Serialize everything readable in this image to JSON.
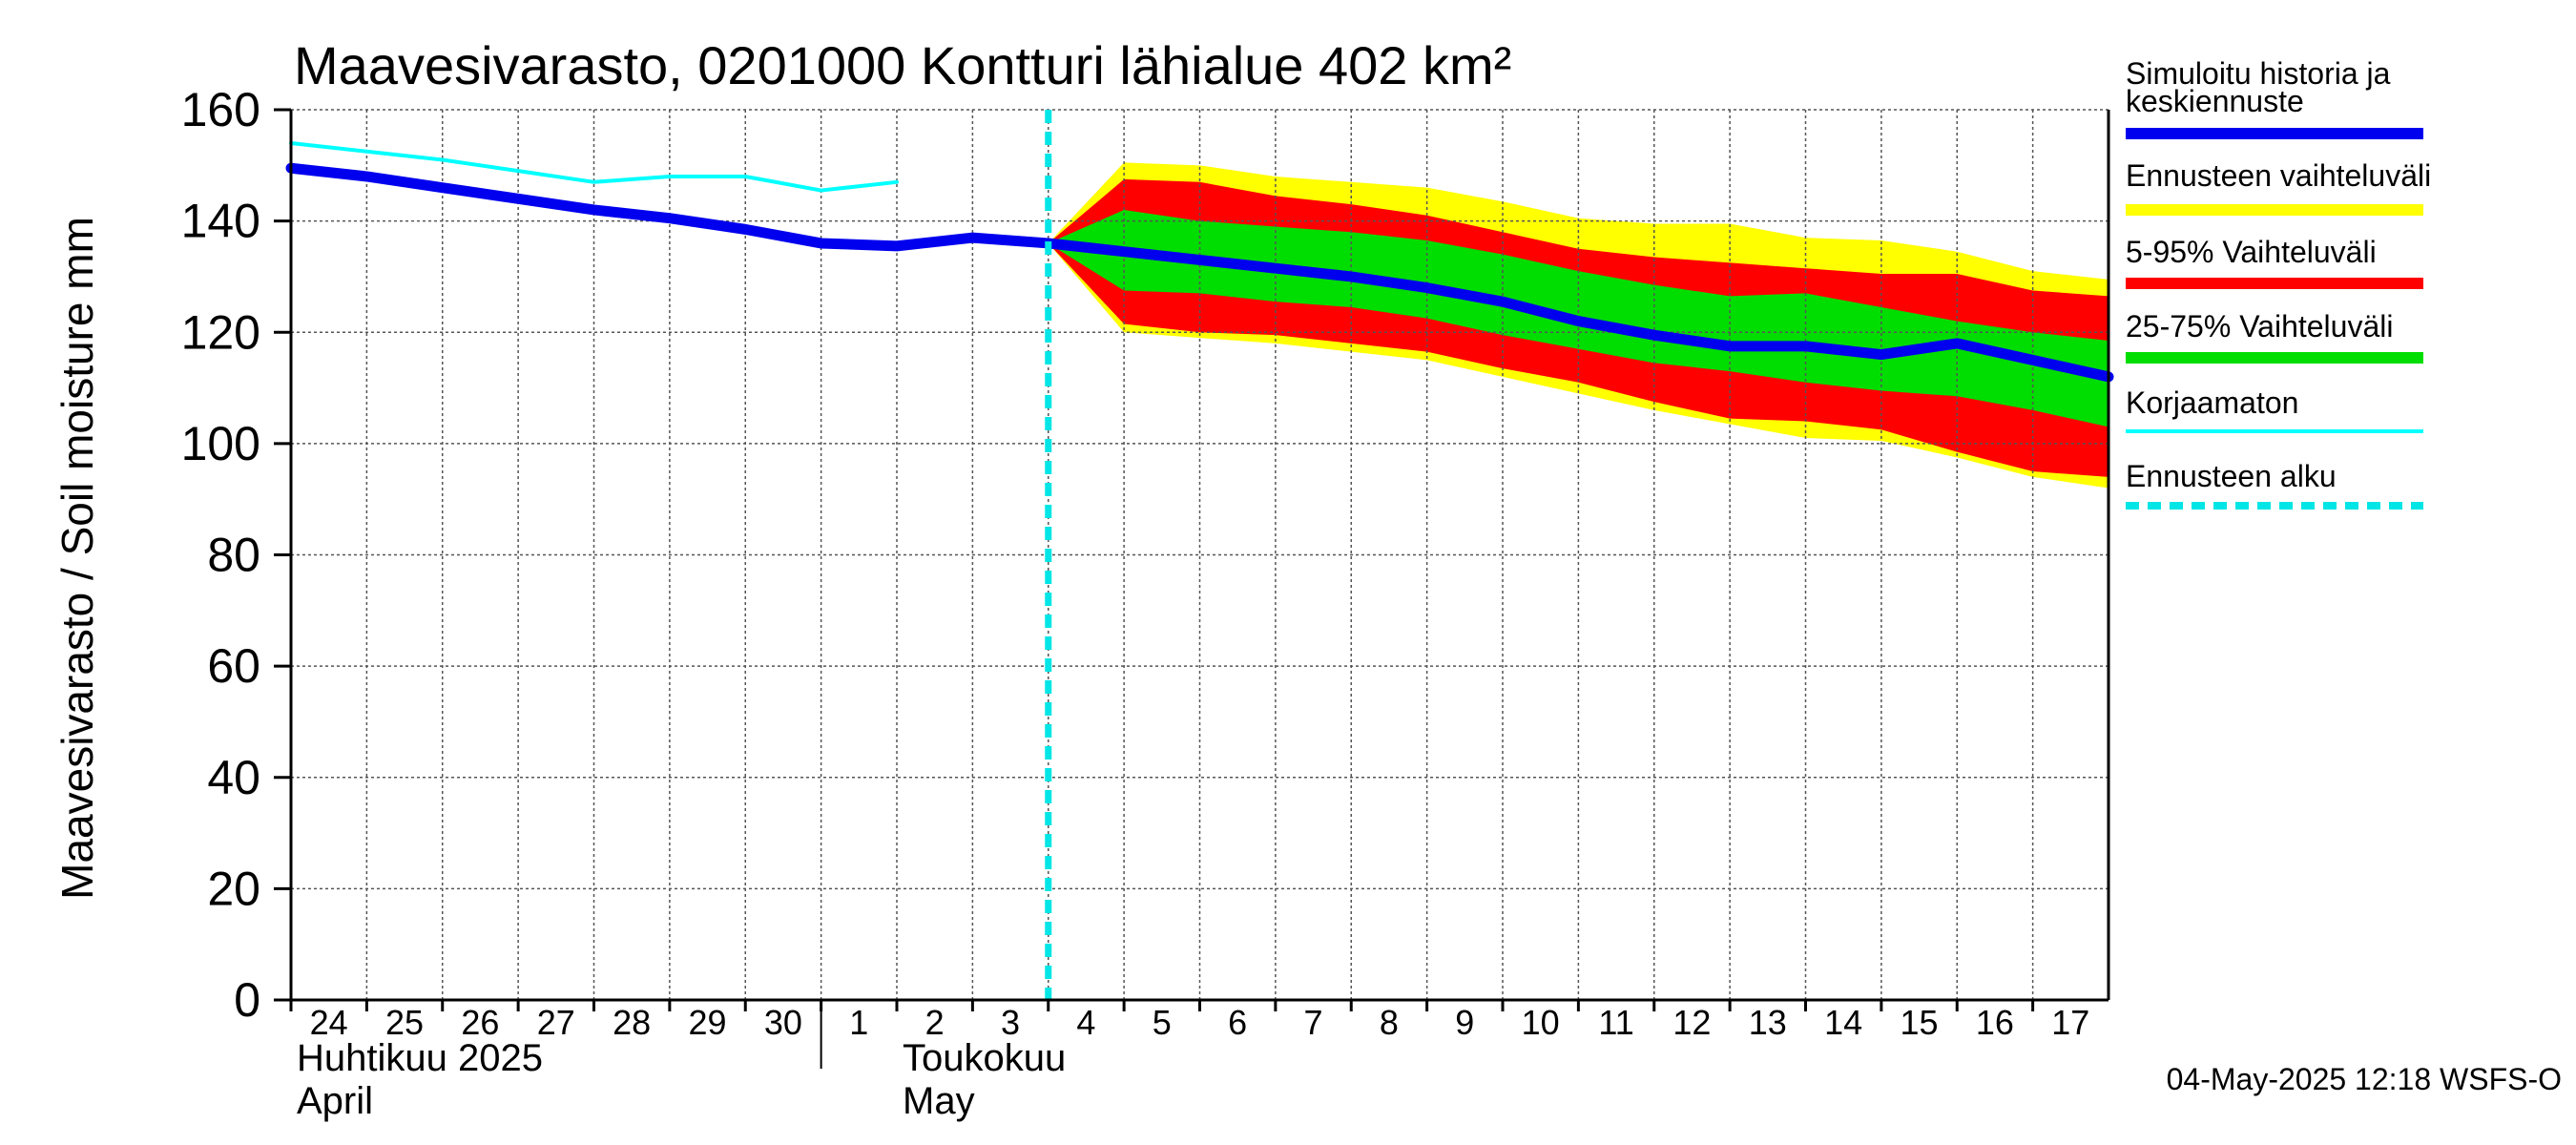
{
  "chart_data": {
    "type": "area",
    "title": "Maavesivarasto, 0201000 Kontturi lähialue 402 km²",
    "ylabel": "Maavesivarasto / Soil moisture   mm",
    "ylim": [
      0,
      160
    ],
    "yticks": [
      0,
      20,
      40,
      60,
      80,
      100,
      120,
      140,
      160
    ],
    "xlim": [
      0,
      24
    ],
    "x_ticks": [
      {
        "x": 0,
        "label": "24"
      },
      {
        "x": 1,
        "label": "25"
      },
      {
        "x": 2,
        "label": "26"
      },
      {
        "x": 3,
        "label": "27"
      },
      {
        "x": 4,
        "label": "28"
      },
      {
        "x": 5,
        "label": "29"
      },
      {
        "x": 6,
        "label": "30"
      },
      {
        "x": 7,
        "label": "1"
      },
      {
        "x": 8,
        "label": "2"
      },
      {
        "x": 9,
        "label": "3"
      },
      {
        "x": 10,
        "label": "4"
      },
      {
        "x": 11,
        "label": "5"
      },
      {
        "x": 12,
        "label": "6"
      },
      {
        "x": 13,
        "label": "7"
      },
      {
        "x": 14,
        "label": "8"
      },
      {
        "x": 15,
        "label": "9"
      },
      {
        "x": 16,
        "label": "10"
      },
      {
        "x": 17,
        "label": "11"
      },
      {
        "x": 18,
        "label": "12"
      },
      {
        "x": 19,
        "label": "13"
      },
      {
        "x": 20,
        "label": "14"
      },
      {
        "x": 21,
        "label": "15"
      },
      {
        "x": 22,
        "label": "16"
      },
      {
        "x": 23,
        "label": "17"
      }
    ],
    "month_labels": [
      {
        "x": 0,
        "line1": "Huhtikuu  2025",
        "line2": "April"
      },
      {
        "x": 8,
        "line1": "Toukokuu",
        "line2": "May"
      }
    ],
    "month_separator_x": 7,
    "forecast_start_x": 10,
    "grid": true,
    "series": [
      {
        "name": "Ennusteen vaihteluväli",
        "kind": "band",
        "color": "#ffff00",
        "x": [
          10,
          11,
          12,
          13,
          14,
          15,
          16,
          17,
          18,
          19,
          20,
          21,
          22,
          23,
          24
        ],
        "upper": [
          136,
          150.5,
          150,
          148,
          147,
          146,
          143.5,
          140.5,
          139.5,
          139.5,
          137,
          136.5,
          134.5,
          131,
          129.5
        ],
        "lower": [
          136,
          120,
          119,
          118,
          116.5,
          115,
          112,
          109,
          106,
          103.5,
          101,
          100.5,
          97.5,
          94,
          92
        ]
      },
      {
        "name": "5-95% Vaihteluväli",
        "kind": "band",
        "color": "#ff0000",
        "x": [
          10,
          11,
          12,
          13,
          14,
          15,
          16,
          17,
          18,
          19,
          20,
          21,
          22,
          23,
          24
        ],
        "upper": [
          136,
          147.5,
          147,
          144.5,
          143,
          141,
          138,
          135,
          133.5,
          132.5,
          131.5,
          130.5,
          130.5,
          127.5,
          126.5
        ],
        "lower": [
          136,
          121.5,
          120,
          119.5,
          118,
          116.5,
          113.5,
          111,
          107.5,
          104.5,
          104,
          102.5,
          98.5,
          95,
          94
        ]
      },
      {
        "name": "25-75% Vaihteluväli",
        "kind": "band",
        "color": "#00dd00",
        "x": [
          10,
          11,
          12,
          13,
          14,
          15,
          16,
          17,
          18,
          19,
          20,
          21,
          22,
          23,
          24
        ],
        "upper": [
          136,
          142,
          140,
          139,
          138,
          136.5,
          134,
          131,
          128.5,
          126.5,
          127,
          124.5,
          122,
          120,
          118.5
        ],
        "lower": [
          136,
          127.5,
          127,
          125.5,
          124.5,
          122.5,
          119.5,
          117,
          114.5,
          113,
          111,
          109.5,
          108.5,
          106,
          103
        ]
      },
      {
        "name": "Korjaamaton",
        "kind": "line",
        "color": "#00ffff",
        "x": [
          0,
          1,
          2,
          3,
          4,
          5,
          6,
          7,
          8
        ],
        "values": [
          154,
          152.5,
          151,
          149,
          147,
          148,
          148,
          145.5,
          147
        ]
      },
      {
        "name": "Simuloitu historia ja keskiennuste",
        "kind": "line",
        "color": "#0000ee",
        "x": [
          0,
          1,
          2,
          3,
          4,
          5,
          6,
          7,
          8,
          9,
          10,
          11,
          12,
          13,
          14,
          15,
          16,
          17,
          18,
          19,
          20,
          21,
          22,
          23,
          24
        ],
        "values": [
          149.5,
          148,
          146,
          144,
          142,
          140.5,
          138.5,
          136,
          135.5,
          137,
          136,
          134.5,
          133,
          131.5,
          130,
          128,
          125.5,
          122,
          119.5,
          117.5,
          117.5,
          116,
          118,
          115,
          112
        ]
      }
    ],
    "legend": [
      {
        "label": "Simuloitu historia ja keskiennuste",
        "color": "#0000ee",
        "style": "thick"
      },
      {
        "label": "Ennusteen vaihteluväli",
        "color": "#ffff00",
        "style": "thick"
      },
      {
        "label": "5-95% Vaihteluväli",
        "color": "#ff0000",
        "style": "thick"
      },
      {
        "label": "25-75% Vaihteluväli",
        "color": "#00dd00",
        "style": "thick"
      },
      {
        "label": "Korjaamaton",
        "color": "#00ffff",
        "style": "thin"
      },
      {
        "label": "Ennusteen alku",
        "color": "#00e5e5",
        "style": "dashed"
      }
    ],
    "legend_position": "right",
    "footer": "04-May-2025 12:18 WSFS-O"
  }
}
